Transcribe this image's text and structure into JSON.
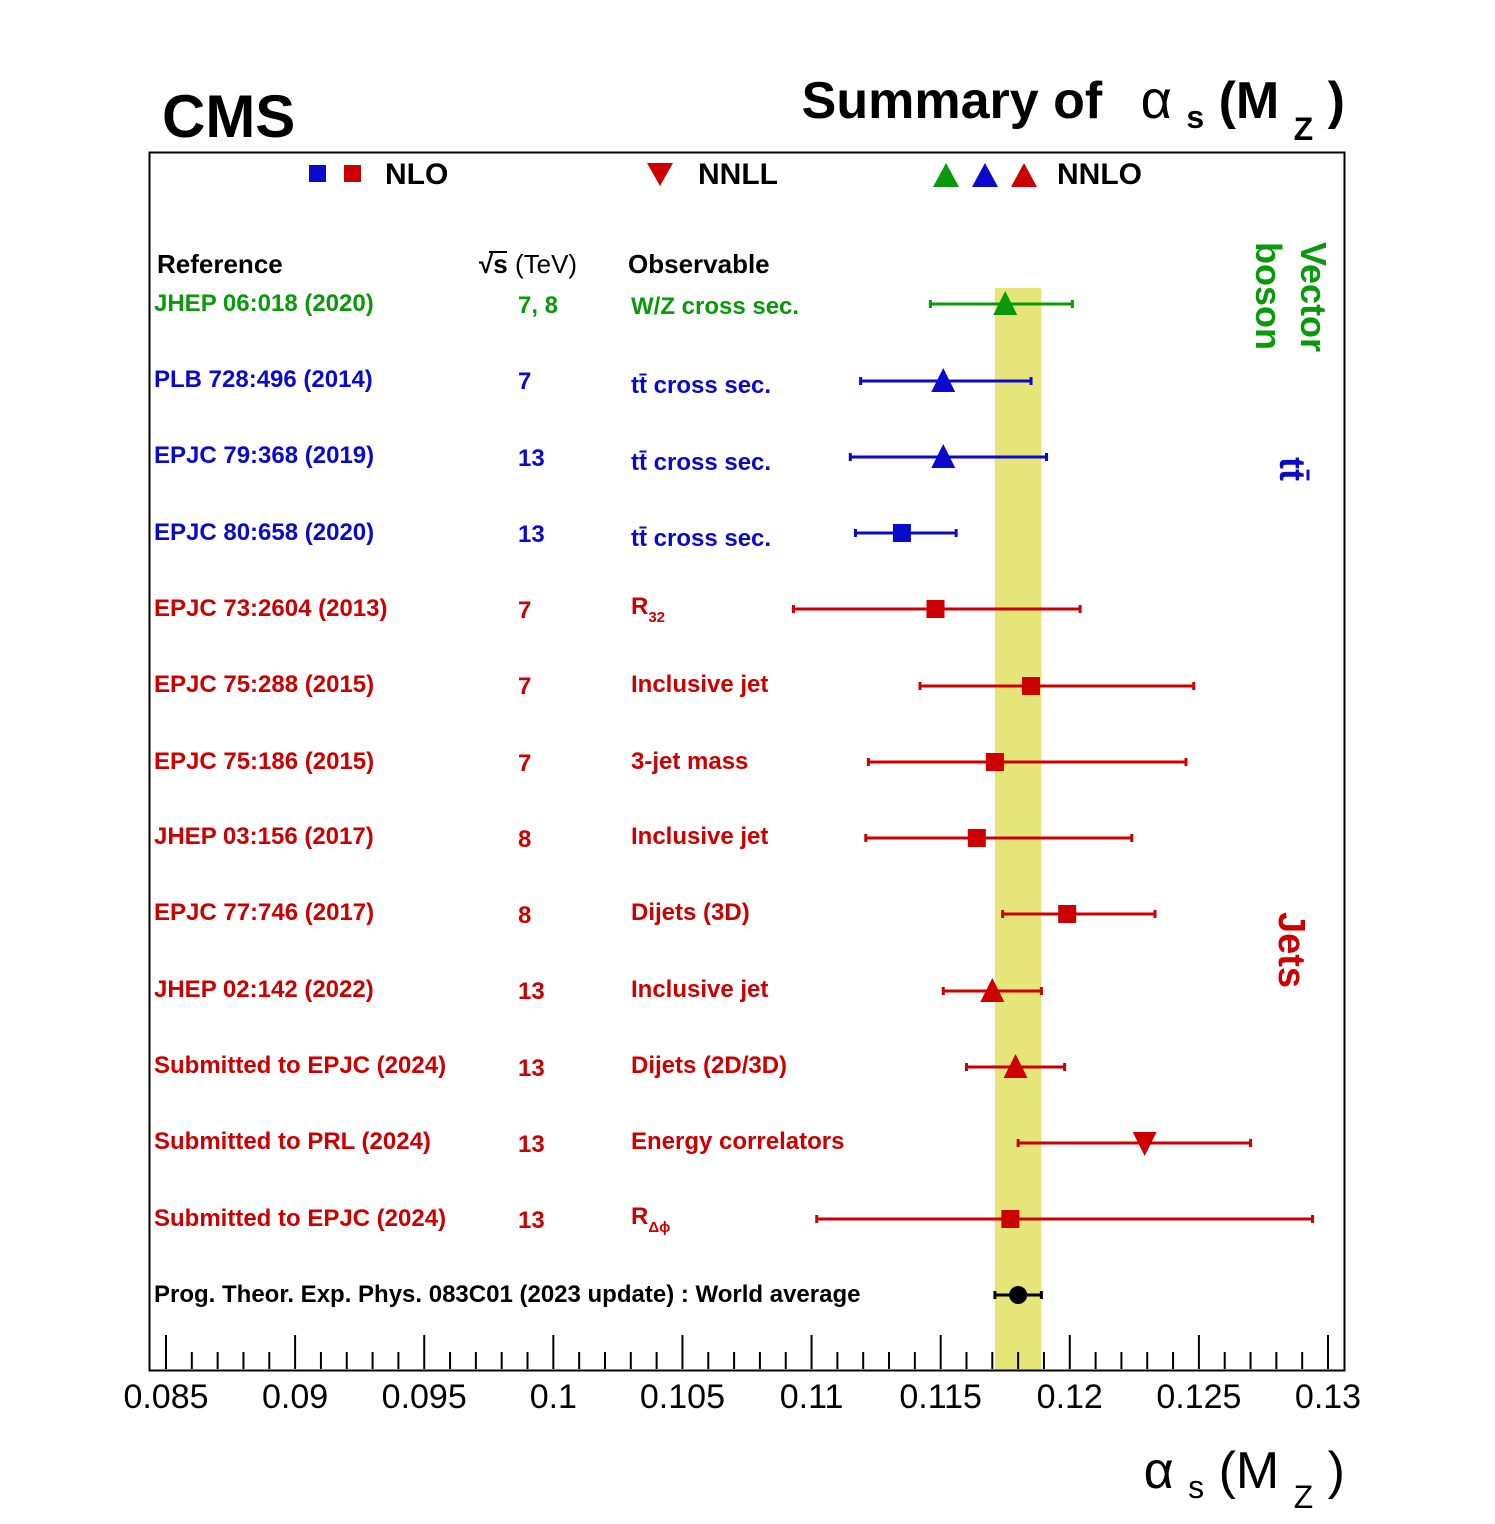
{
  "header": {
    "experiment": "CMS",
    "title_prefix": "Summary of",
    "title_alpha": "α",
    "title_sub_s": "s",
    "title_paren_open": "(M",
    "title_sub_z": "Z",
    "title_paren_close": ")"
  },
  "legend": {
    "nlo_label": "NLO",
    "nnll_label": "NNLL",
    "nnlo_label": "NNLO"
  },
  "columns": {
    "reference": "Reference",
    "sqrt_symbol": "√",
    "sqrt_s": "s",
    "energy_unit": " (TeV)",
    "observable": "Observable"
  },
  "groups": {
    "vector_boson_line1": "Vector",
    "vector_boson_line2": "boson",
    "ttbar": "tt̄",
    "jets": "Jets"
  },
  "colors": {
    "green": "#0a990a",
    "blue": "#0a0acc",
    "red": "#cc0000",
    "black": "#000000",
    "band": "#e5e57a"
  },
  "rows": [
    {
      "reference": "JHEP 06:018 (2020)",
      "energy": "7, 8",
      "observable": "W/Z cross sec.",
      "obs_sub": ""
    },
    {
      "reference": "PLB 728:496 (2014)",
      "energy": "7",
      "observable": "tt̄ cross sec.",
      "obs_sub": ""
    },
    {
      "reference": "EPJC 79:368 (2019)",
      "energy": "13",
      "observable": "tt̄ cross sec.",
      "obs_sub": ""
    },
    {
      "reference": "EPJC 80:658 (2020)",
      "energy": "13",
      "observable": "tt̄ cross sec.",
      "obs_sub": ""
    },
    {
      "reference": "EPJC 73:2604 (2013)",
      "energy": "7",
      "observable": "R",
      "obs_sub": "32"
    },
    {
      "reference": "EPJC 75:288 (2015)",
      "energy": "7",
      "observable": "Inclusive jet",
      "obs_sub": ""
    },
    {
      "reference": "EPJC 75:186 (2015)",
      "energy": "7",
      "observable": "3-jet mass",
      "obs_sub": ""
    },
    {
      "reference": "JHEP 03:156 (2017)",
      "energy": "8",
      "observable": "Inclusive jet",
      "obs_sub": ""
    },
    {
      "reference": "EPJC 77:746 (2017)",
      "energy": "8",
      "observable": "Dijets (3D)",
      "obs_sub": ""
    },
    {
      "reference": "JHEP 02:142 (2022)",
      "energy": "13",
      "observable": "Inclusive jet",
      "obs_sub": ""
    },
    {
      "reference": "Submitted to EPJC (2024)",
      "energy": "13",
      "observable": "Dijets (2D/3D)",
      "obs_sub": ""
    },
    {
      "reference": "Submitted to PRL (2024)",
      "energy": "13",
      "observable": "Energy correlators",
      "obs_sub": ""
    },
    {
      "reference": "Submitted to EPJC (2024)",
      "energy": "13",
      "observable": "R",
      "obs_sub": "Δϕ"
    }
  ],
  "world_average_label": "Prog. Theor. Exp. Phys. 083C01 (2023 update) : World average",
  "chart_data": {
    "type": "scatter",
    "title": "Summary of αs(MZ)",
    "xlabel": "αs(MZ)",
    "ylabel": "",
    "xlim": [
      0.0845,
      0.1305
    ],
    "xticks": [
      0.085,
      0.09,
      0.095,
      0.1,
      0.105,
      0.11,
      0.115,
      0.12,
      0.125,
      0.13
    ],
    "xtick_labels": [
      "0.085",
      "0.09",
      "0.095",
      "0.1",
      "0.105",
      "0.11",
      "0.115",
      "0.12",
      "0.125",
      "0.13"
    ],
    "world_average_band": [
      0.1171,
      0.1189
    ],
    "points": [
      {
        "value": 0.1175,
        "low": 0.1146,
        "high": 0.1201,
        "marker": "triangle-up",
        "order": "NNLO",
        "color": "green"
      },
      {
        "value": 0.1151,
        "low": 0.1119,
        "high": 0.1185,
        "marker": "triangle-up",
        "order": "NNLO",
        "color": "blue"
      },
      {
        "value": 0.1151,
        "low": 0.1115,
        "high": 0.1191,
        "marker": "triangle-up",
        "order": "NNLO",
        "color": "blue"
      },
      {
        "value": 0.1135,
        "low": 0.1117,
        "high": 0.1156,
        "marker": "square",
        "order": "NLO",
        "color": "blue"
      },
      {
        "value": 0.1148,
        "low": 0.1093,
        "high": 0.1204,
        "marker": "square",
        "order": "NLO",
        "color": "red"
      },
      {
        "value": 0.1185,
        "low": 0.1142,
        "high": 0.1248,
        "marker": "square",
        "order": "NLO",
        "color": "red"
      },
      {
        "value": 0.1171,
        "low": 0.1122,
        "high": 0.1245,
        "marker": "square",
        "order": "NLO",
        "color": "red"
      },
      {
        "value": 0.1164,
        "low": 0.1121,
        "high": 0.1224,
        "marker": "square",
        "order": "NLO",
        "color": "red"
      },
      {
        "value": 0.1199,
        "low": 0.1174,
        "high": 0.1233,
        "marker": "square",
        "order": "NLO",
        "color": "red"
      },
      {
        "value": 0.117,
        "low": 0.1151,
        "high": 0.1189,
        "marker": "triangle-up",
        "order": "NNLO",
        "color": "red"
      },
      {
        "value": 0.1179,
        "low": 0.116,
        "high": 0.1198,
        "marker": "triangle-up",
        "order": "NNLO",
        "color": "red"
      },
      {
        "value": 0.1229,
        "low": 0.118,
        "high": 0.127,
        "marker": "triangle-down",
        "order": "NNLL",
        "color": "red"
      },
      {
        "value": 0.1177,
        "low": 0.1102,
        "high": 0.1294,
        "marker": "square",
        "order": "NLO",
        "color": "red"
      }
    ],
    "world_average": {
      "value": 0.118,
      "low": 0.1171,
      "high": 0.1189,
      "marker": "circle",
      "color": "black"
    }
  }
}
